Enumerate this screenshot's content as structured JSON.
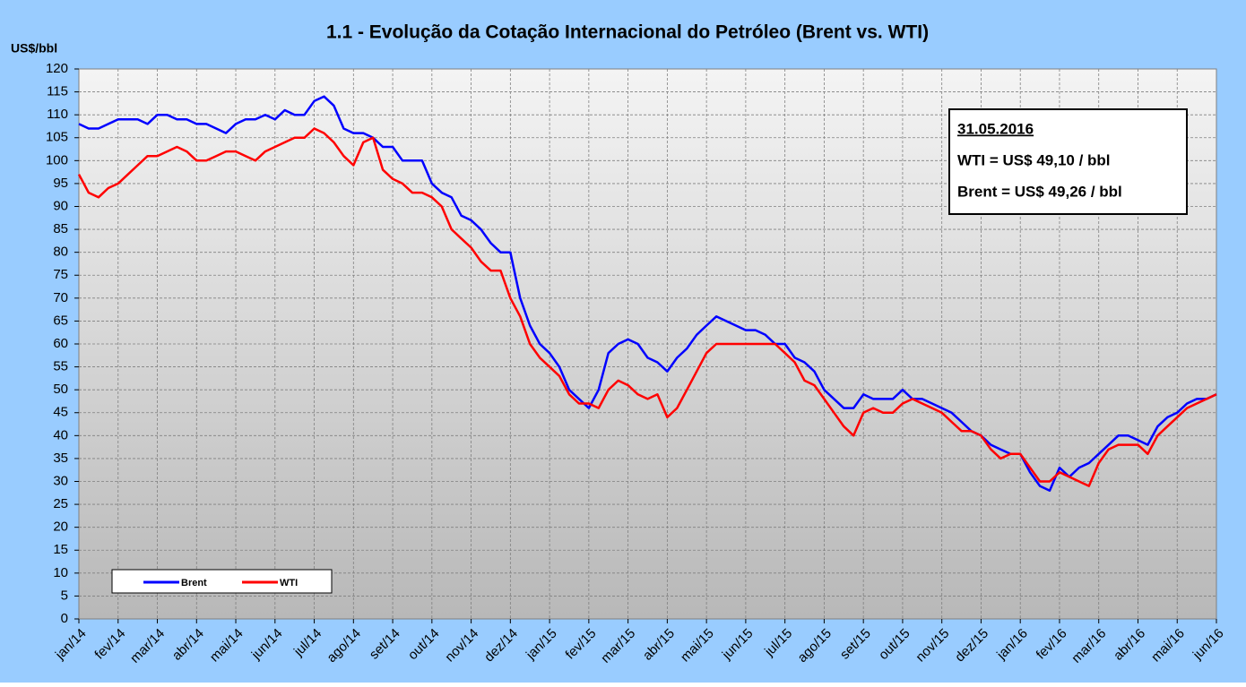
{
  "chart_data": {
    "type": "line",
    "title": "1.1 - Evolução da Cotação Internacional do Petróleo (Brent vs. WTI)",
    "y_label": "US$/bbl",
    "annotation": {
      "date": "31.05.2016",
      "lines": [
        "WTI = US$ 49,10 / bbl",
        "Brent = US$ 49,26 / bbl"
      ]
    },
    "categories": [
      "jan/14",
      null,
      null,
      null,
      "fev/14",
      null,
      null,
      null,
      "mar/14",
      null,
      null,
      null,
      "abr/14",
      null,
      null,
      null,
      "mai/14",
      null,
      null,
      null,
      "jun/14",
      null,
      null,
      null,
      "jul/14",
      null,
      null,
      null,
      "ago/14",
      null,
      null,
      null,
      "set/14",
      null,
      null,
      null,
      "out/14",
      null,
      null,
      null,
      "nov/14",
      null,
      null,
      null,
      "dez/14",
      null,
      null,
      null,
      "jan/15",
      null,
      null,
      null,
      "fev/15",
      null,
      null,
      null,
      "mar/15",
      null,
      null,
      null,
      "abr/15",
      null,
      null,
      null,
      "mai/15",
      null,
      null,
      null,
      "jun/15",
      null,
      null,
      null,
      "jul/15",
      null,
      null,
      null,
      "ago/15",
      null,
      null,
      null,
      "set/15",
      null,
      null,
      null,
      "out/15",
      null,
      null,
      null,
      "nov/15",
      null,
      null,
      null,
      "dez/15",
      null,
      null,
      null,
      "jan/16",
      null,
      null,
      null,
      "fev/16",
      null,
      null,
      null,
      "mar/16",
      null,
      null,
      null,
      "abr/16",
      null,
      null,
      null,
      "mai/16",
      null,
      null,
      null,
      "jun/16"
    ],
    "series": [
      {
        "name": "Brent",
        "color": "#0000ff",
        "values": [
          108,
          107,
          107,
          108,
          109,
          109,
          109,
          108,
          110,
          110,
          109,
          109,
          108,
          108,
          107,
          106,
          108,
          109,
          109,
          110,
          109,
          111,
          110,
          110,
          113,
          114,
          112,
          107,
          106,
          106,
          105,
          103,
          103,
          100,
          100,
          100,
          95,
          93,
          92,
          88,
          87,
          85,
          82,
          80,
          80,
          70,
          64,
          60,
          58,
          55,
          50,
          48,
          46,
          50,
          58,
          60,
          61,
          60,
          57,
          56,
          54,
          57,
          59,
          62,
          64,
          66,
          65,
          64,
          63,
          63,
          62,
          60,
          60,
          57,
          56,
          54,
          50,
          48,
          46,
          46,
          49,
          48,
          48,
          48,
          50,
          48,
          48,
          47,
          46,
          45,
          43,
          41,
          40,
          38,
          37,
          36,
          36,
          32,
          29,
          28,
          33,
          31,
          33,
          34,
          36,
          38,
          40,
          40,
          39,
          38,
          42,
          44,
          45,
          47,
          48,
          48,
          49
        ]
      },
      {
        "name": "WTI",
        "color": "#ff0000",
        "values": [
          97,
          93,
          92,
          94,
          95,
          97,
          99,
          101,
          101,
          102,
          103,
          102,
          100,
          100,
          101,
          102,
          102,
          101,
          100,
          102,
          103,
          104,
          105,
          105,
          107,
          106,
          104,
          101,
          99,
          104,
          105,
          98,
          96,
          95,
          93,
          93,
          92,
          90,
          85,
          83,
          81,
          78,
          76,
          76,
          70,
          66,
          60,
          57,
          55,
          53,
          49,
          47,
          47,
          46,
          50,
          52,
          51,
          49,
          48,
          49,
          44,
          46,
          50,
          54,
          58,
          60,
          60,
          60,
          60,
          60,
          60,
          60,
          58,
          56,
          52,
          51,
          48,
          45,
          42,
          40,
          45,
          46,
          45,
          45,
          47,
          48,
          47,
          46,
          45,
          43,
          41,
          41,
          40,
          37,
          35,
          36,
          36,
          33,
          30,
          30,
          32,
          31,
          30,
          29,
          34,
          37,
          38,
          38,
          38,
          36,
          40,
          42,
          44,
          46,
          47,
          48,
          49
        ]
      }
    ],
    "ylim": [
      0,
      120
    ],
    "yticks": [
      0,
      5,
      10,
      15,
      20,
      25,
      30,
      35,
      40,
      45,
      50,
      55,
      60,
      65,
      70,
      75,
      80,
      85,
      90,
      95,
      100,
      105,
      110,
      115,
      120
    ],
    "grid": true
  }
}
